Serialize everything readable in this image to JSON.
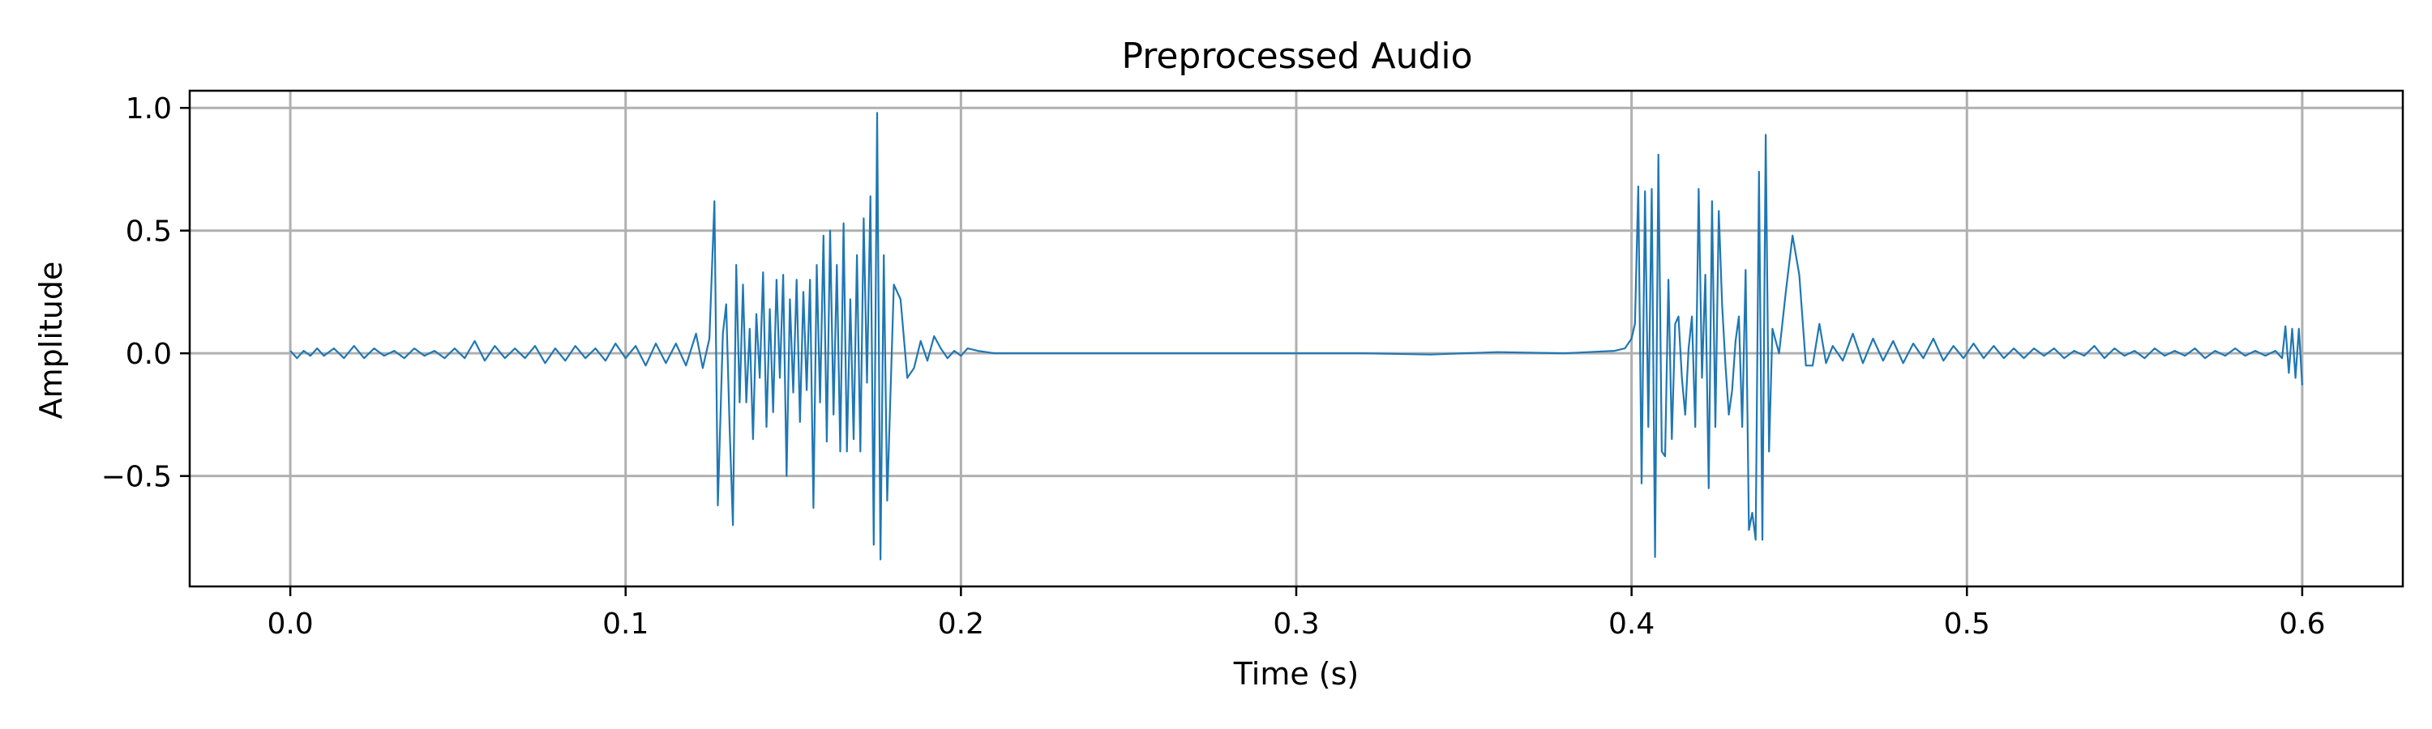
{
  "chart_data": {
    "type": "line",
    "title": "Preprocessed Audio",
    "xlabel": "Time (s)",
    "ylabel": "Amplitude",
    "xlim": [
      -0.03,
      0.63
    ],
    "ylim": [
      -0.95,
      1.07
    ],
    "xticks": [
      0.0,
      0.1,
      0.2,
      0.3,
      0.4,
      0.5,
      0.6
    ],
    "xtick_labels": [
      "0.0",
      "0.1",
      "0.2",
      "0.3",
      "0.4",
      "0.5",
      "0.6"
    ],
    "yticks": [
      -0.5,
      0.0,
      0.5,
      1.0
    ],
    "ytick_labels": [
      "−0.5",
      "0.0",
      "0.5",
      "1.0"
    ],
    "grid": true,
    "series": [
      {
        "color": "#1f77b4",
        "points": [
          [
            0.0,
            0.01
          ],
          [
            0.002,
            -0.02
          ],
          [
            0.004,
            0.01
          ],
          [
            0.006,
            -0.01
          ],
          [
            0.008,
            0.02
          ],
          [
            0.01,
            -0.01
          ],
          [
            0.013,
            0.02
          ],
          [
            0.016,
            -0.02
          ],
          [
            0.019,
            0.03
          ],
          [
            0.022,
            -0.02
          ],
          [
            0.025,
            0.02
          ],
          [
            0.028,
            -0.01
          ],
          [
            0.031,
            0.01
          ],
          [
            0.034,
            -0.02
          ],
          [
            0.037,
            0.02
          ],
          [
            0.04,
            -0.01
          ],
          [
            0.043,
            0.01
          ],
          [
            0.046,
            -0.02
          ],
          [
            0.049,
            0.02
          ],
          [
            0.052,
            -0.02
          ],
          [
            0.055,
            0.05
          ],
          [
            0.058,
            -0.03
          ],
          [
            0.061,
            0.03
          ],
          [
            0.064,
            -0.02
          ],
          [
            0.067,
            0.02
          ],
          [
            0.07,
            -0.02
          ],
          [
            0.073,
            0.03
          ],
          [
            0.076,
            -0.04
          ],
          [
            0.079,
            0.02
          ],
          [
            0.082,
            -0.03
          ],
          [
            0.085,
            0.03
          ],
          [
            0.088,
            -0.02
          ],
          [
            0.091,
            0.02
          ],
          [
            0.094,
            -0.03
          ],
          [
            0.097,
            0.04
          ],
          [
            0.1,
            -0.02
          ],
          [
            0.103,
            0.03
          ],
          [
            0.106,
            -0.05
          ],
          [
            0.109,
            0.04
          ],
          [
            0.112,
            -0.04
          ],
          [
            0.115,
            0.04
          ],
          [
            0.118,
            -0.05
          ],
          [
            0.121,
            0.08
          ],
          [
            0.123,
            -0.06
          ],
          [
            0.125,
            0.06
          ],
          [
            0.1265,
            0.62
          ],
          [
            0.1275,
            -0.62
          ],
          [
            0.129,
            0.08
          ],
          [
            0.13,
            0.2
          ],
          [
            0.131,
            -0.3
          ],
          [
            0.132,
            -0.7
          ],
          [
            0.133,
            0.36
          ],
          [
            0.134,
            -0.2
          ],
          [
            0.135,
            0.28
          ],
          [
            0.136,
            -0.2
          ],
          [
            0.137,
            0.1
          ],
          [
            0.138,
            -0.35
          ],
          [
            0.139,
            0.16
          ],
          [
            0.14,
            -0.1
          ],
          [
            0.141,
            0.33
          ],
          [
            0.142,
            -0.3
          ],
          [
            0.143,
            0.18
          ],
          [
            0.144,
            -0.24
          ],
          [
            0.145,
            0.3
          ],
          [
            0.146,
            -0.1
          ],
          [
            0.147,
            0.32
          ],
          [
            0.148,
            -0.5
          ],
          [
            0.149,
            0.22
          ],
          [
            0.15,
            -0.16
          ],
          [
            0.151,
            0.3
          ],
          [
            0.152,
            -0.28
          ],
          [
            0.153,
            0.25
          ],
          [
            0.154,
            -0.15
          ],
          [
            0.155,
            0.3
          ],
          [
            0.156,
            -0.63
          ],
          [
            0.157,
            0.36
          ],
          [
            0.158,
            -0.2
          ],
          [
            0.159,
            0.48
          ],
          [
            0.16,
            -0.36
          ],
          [
            0.161,
            0.5
          ],
          [
            0.162,
            -0.25
          ],
          [
            0.163,
            0.36
          ],
          [
            0.164,
            -0.4
          ],
          [
            0.165,
            0.53
          ],
          [
            0.166,
            -0.4
          ],
          [
            0.167,
            0.22
          ],
          [
            0.168,
            -0.35
          ],
          [
            0.169,
            0.4
          ],
          [
            0.17,
            -0.4
          ],
          [
            0.171,
            0.55
          ],
          [
            0.172,
            -0.12
          ],
          [
            0.173,
            0.64
          ],
          [
            0.174,
            -0.78
          ],
          [
            0.175,
            0.98
          ],
          [
            0.176,
            -0.84
          ],
          [
            0.177,
            0.4
          ],
          [
            0.178,
            -0.6
          ],
          [
            0.18,
            0.28
          ],
          [
            0.182,
            0.22
          ],
          [
            0.184,
            -0.1
          ],
          [
            0.186,
            -0.06
          ],
          [
            0.188,
            0.05
          ],
          [
            0.19,
            -0.03
          ],
          [
            0.192,
            0.07
          ],
          [
            0.194,
            0.02
          ],
          [
            0.196,
            -0.02
          ],
          [
            0.198,
            0.01
          ],
          [
            0.2,
            -0.01
          ],
          [
            0.202,
            0.02
          ],
          [
            0.205,
            0.01
          ],
          [
            0.21,
            0.0
          ],
          [
            0.25,
            0.0
          ],
          [
            0.3,
            0.0
          ],
          [
            0.32,
            0.0
          ],
          [
            0.34,
            -0.005
          ],
          [
            0.36,
            0.005
          ],
          [
            0.38,
            0.0
          ],
          [
            0.395,
            0.01
          ],
          [
            0.398,
            0.02
          ],
          [
            0.4,
            0.06
          ],
          [
            0.401,
            0.12
          ],
          [
            0.402,
            0.68
          ],
          [
            0.403,
            -0.53
          ],
          [
            0.404,
            0.66
          ],
          [
            0.405,
            -0.3
          ],
          [
            0.406,
            0.67
          ],
          [
            0.407,
            -0.83
          ],
          [
            0.408,
            0.81
          ],
          [
            0.409,
            -0.4
          ],
          [
            0.41,
            -0.42
          ],
          [
            0.411,
            0.3
          ],
          [
            0.412,
            -0.35
          ],
          [
            0.413,
            0.12
          ],
          [
            0.414,
            0.15
          ],
          [
            0.415,
            -0.1
          ],
          [
            0.416,
            -0.25
          ],
          [
            0.417,
            0.02
          ],
          [
            0.418,
            0.15
          ],
          [
            0.419,
            -0.3
          ],
          [
            0.42,
            0.67
          ],
          [
            0.421,
            -0.1
          ],
          [
            0.422,
            0.32
          ],
          [
            0.423,
            -0.55
          ],
          [
            0.424,
            0.62
          ],
          [
            0.425,
            -0.3
          ],
          [
            0.426,
            0.58
          ],
          [
            0.427,
            0.2
          ],
          [
            0.428,
            -0.05
          ],
          [
            0.429,
            -0.25
          ],
          [
            0.43,
            -0.15
          ],
          [
            0.431,
            0.05
          ],
          [
            0.432,
            0.15
          ],
          [
            0.433,
            -0.3
          ],
          [
            0.434,
            0.34
          ],
          [
            0.435,
            -0.72
          ],
          [
            0.436,
            -0.65
          ],
          [
            0.437,
            -0.76
          ],
          [
            0.438,
            0.74
          ],
          [
            0.439,
            -0.76
          ],
          [
            0.44,
            0.89
          ],
          [
            0.441,
            -0.4
          ],
          [
            0.442,
            0.1
          ],
          [
            0.444,
            0.0
          ],
          [
            0.446,
            0.25
          ],
          [
            0.448,
            0.48
          ],
          [
            0.45,
            0.32
          ],
          [
            0.452,
            -0.05
          ],
          [
            0.454,
            -0.05
          ],
          [
            0.456,
            0.12
          ],
          [
            0.458,
            -0.04
          ],
          [
            0.46,
            0.03
          ],
          [
            0.463,
            -0.03
          ],
          [
            0.466,
            0.08
          ],
          [
            0.469,
            -0.04
          ],
          [
            0.472,
            0.06
          ],
          [
            0.475,
            -0.03
          ],
          [
            0.478,
            0.05
          ],
          [
            0.481,
            -0.04
          ],
          [
            0.484,
            0.04
          ],
          [
            0.487,
            -0.02
          ],
          [
            0.49,
            0.06
          ],
          [
            0.493,
            -0.03
          ],
          [
            0.496,
            0.03
          ],
          [
            0.499,
            -0.02
          ],
          [
            0.502,
            0.04
          ],
          [
            0.505,
            -0.02
          ],
          [
            0.508,
            0.03
          ],
          [
            0.511,
            -0.02
          ],
          [
            0.514,
            0.02
          ],
          [
            0.517,
            -0.02
          ],
          [
            0.52,
            0.02
          ],
          [
            0.523,
            -0.01
          ],
          [
            0.526,
            0.02
          ],
          [
            0.529,
            -0.02
          ],
          [
            0.532,
            0.01
          ],
          [
            0.535,
            -0.01
          ],
          [
            0.538,
            0.03
          ],
          [
            0.541,
            -0.02
          ],
          [
            0.544,
            0.02
          ],
          [
            0.547,
            -0.01
          ],
          [
            0.55,
            0.01
          ],
          [
            0.553,
            -0.02
          ],
          [
            0.556,
            0.02
          ],
          [
            0.559,
            -0.01
          ],
          [
            0.562,
            0.01
          ],
          [
            0.565,
            -0.01
          ],
          [
            0.568,
            0.02
          ],
          [
            0.571,
            -0.02
          ],
          [
            0.574,
            0.01
          ],
          [
            0.577,
            -0.01
          ],
          [
            0.58,
            0.02
          ],
          [
            0.583,
            -0.01
          ],
          [
            0.586,
            0.01
          ],
          [
            0.589,
            -0.01
          ],
          [
            0.592,
            0.01
          ],
          [
            0.594,
            -0.02
          ],
          [
            0.595,
            0.11
          ],
          [
            0.596,
            -0.08
          ],
          [
            0.597,
            0.1
          ],
          [
            0.598,
            -0.1
          ],
          [
            0.599,
            0.1
          ],
          [
            0.6,
            -0.13
          ]
        ]
      }
    ]
  }
}
